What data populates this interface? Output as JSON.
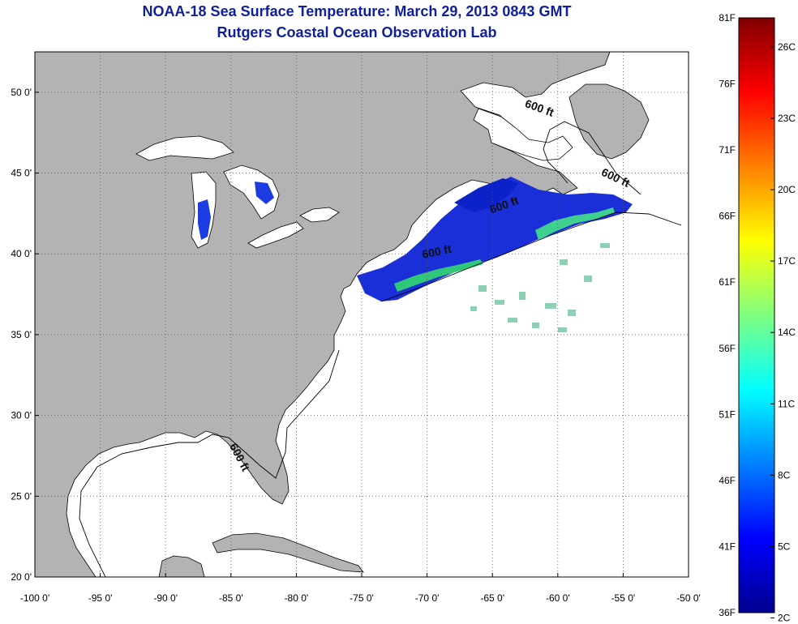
{
  "title": {
    "line1": "NOAA-18 Sea Surface Temperature:  March 29, 2013 0843 GMT",
    "line2": "Rutgers Coastal Ocean Observation Lab"
  },
  "map": {
    "lon_range": [
      -100,
      -50
    ],
    "lat_range": [
      20,
      52.5
    ],
    "x_ticks": [
      {
        "value": -100,
        "label": "-100 0'"
      },
      {
        "value": -95,
        "label": "-95 0'"
      },
      {
        "value": -90,
        "label": "-90 0'"
      },
      {
        "value": -85,
        "label": "-85 0'"
      },
      {
        "value": -80,
        "label": "-80 0'"
      },
      {
        "value": -75,
        "label": "-75 0'"
      },
      {
        "value": -70,
        "label": "-70 0'"
      },
      {
        "value": -65,
        "label": "-65 0'"
      },
      {
        "value": -60,
        "label": "-60 0'"
      },
      {
        "value": -55,
        "label": "-55 0'"
      },
      {
        "value": -50,
        "label": "-50 0'"
      }
    ],
    "y_ticks": [
      {
        "value": 50,
        "label": "50 0'"
      },
      {
        "value": 45,
        "label": "45 0'"
      },
      {
        "value": 40,
        "label": "40 0'"
      },
      {
        "value": 35,
        "label": "35 0'"
      },
      {
        "value": 30,
        "label": "30 0'"
      },
      {
        "value": 25,
        "label": "25 0'"
      },
      {
        "value": 20,
        "label": "20 0'"
      }
    ],
    "grid": "dotted",
    "contour_labels": [
      {
        "text": "600 ft",
        "lon": -61.5,
        "lat": 48.8,
        "rotate": 20
      },
      {
        "text": "600 ft",
        "lon": -55.7,
        "lat": 44.5,
        "rotate": 25
      },
      {
        "text": "600 ft",
        "lon": -64.0,
        "lat": 42.8,
        "rotate": -20
      },
      {
        "text": "600 ft",
        "lon": -69.2,
        "lat": 39.9,
        "rotate": -12
      },
      {
        "text": "600 ft",
        "lon": -84.6,
        "lat": 27.3,
        "rotate": 62
      }
    ],
    "colors": {
      "land": "#b3b3b3",
      "ocean": "#ffffff",
      "coast": "#000000",
      "grid": "#555555"
    }
  },
  "colorbar": {
    "fahrenheit": [
      {
        "value": 81,
        "label": "81F"
      },
      {
        "value": 76,
        "label": "76F"
      },
      {
        "value": 71,
        "label": "71F"
      },
      {
        "value": 66,
        "label": "66F"
      },
      {
        "value": 61,
        "label": "61F"
      },
      {
        "value": 56,
        "label": "56F"
      },
      {
        "value": 51,
        "label": "51F"
      },
      {
        "value": 46,
        "label": "46F"
      },
      {
        "value": 41,
        "label": "41F"
      },
      {
        "value": 36,
        "label": "36F"
      }
    ],
    "celsius": [
      {
        "value": 26,
        "label": "26C"
      },
      {
        "value": 23,
        "label": "23C"
      },
      {
        "value": 20,
        "label": "20C"
      },
      {
        "value": 17,
        "label": "17C"
      },
      {
        "value": 14,
        "label": "14C"
      },
      {
        "value": 11,
        "label": "11C"
      },
      {
        "value": 8,
        "label": "8C"
      },
      {
        "value": 5,
        "label": "5C"
      },
      {
        "value": 2,
        "label": "2C"
      }
    ],
    "range_f": [
      36,
      81
    ],
    "colormap": [
      "#00008f",
      "#0000ff",
      "#00ffff",
      "#ffff00",
      "#ff0000",
      "#800000"
    ]
  }
}
